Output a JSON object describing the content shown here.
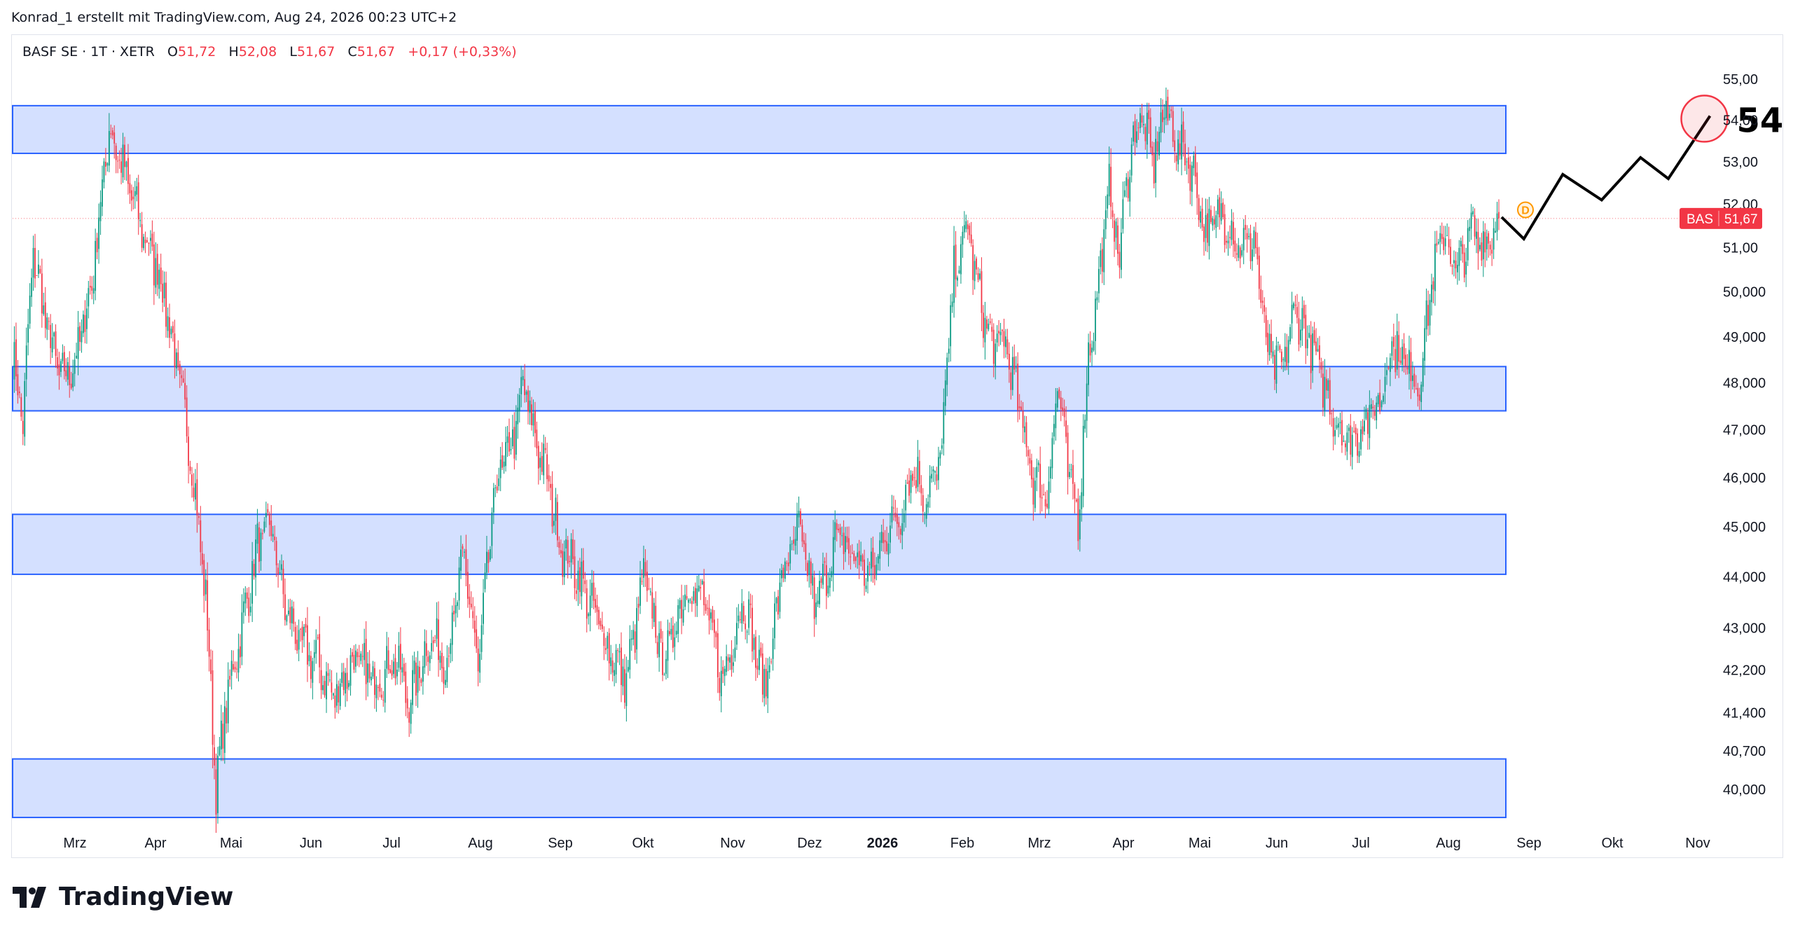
{
  "header": {
    "credit": "Konrad_1 erstellt mit TradingView.com, Aug 24, 2026 00:23 UTC+2"
  },
  "legend": {
    "symbol": "BASF SE · 1T · XETR",
    "open_label": "O",
    "open": "51,72",
    "high_label": "H",
    "high": "52,08",
    "low_label": "L",
    "low": "51,67",
    "close_label": "C",
    "close": "51,67",
    "change": "+0,17 (+0,33%)"
  },
  "brand": {
    "name": "TradingView"
  },
  "chart_data": {
    "type": "candlestick",
    "symbol": "BAS",
    "last_price": 51.67,
    "last_price_label": "51,67",
    "y_scale": "log",
    "ylim": [
      39.3,
      55.4
    ],
    "price_ticks": [
      {
        "v": 55,
        "label": "55,00"
      },
      {
        "v": 54,
        "label": "54,00"
      },
      {
        "v": 53,
        "label": "53,00"
      },
      {
        "v": 52,
        "label": "52,00"
      },
      {
        "v": 51,
        "label": "51,00"
      },
      {
        "v": 50,
        "label": "50,000"
      },
      {
        "v": 49,
        "label": "49,000"
      },
      {
        "v": 48,
        "label": "48,000"
      },
      {
        "v": 47,
        "label": "47,000"
      },
      {
        "v": 46,
        "label": "46,000"
      },
      {
        "v": 45,
        "label": "45,000"
      },
      {
        "v": 44,
        "label": "44,000"
      },
      {
        "v": 43,
        "label": "43,000"
      },
      {
        "v": 42.2,
        "label": "42,200"
      },
      {
        "v": 41.4,
        "label": "41,400"
      },
      {
        "v": 40.7,
        "label": "40,700"
      },
      {
        "v": 40,
        "label": "40,000"
      }
    ],
    "x_ticks": [
      "Mrz",
      "Apr",
      "Mai",
      "Jun",
      "Jul",
      "Aug",
      "Sep",
      "Okt",
      "Nov",
      "Dez",
      "2026",
      "Feb",
      "Mrz",
      "Apr",
      "Mai",
      "Jun",
      "Jul",
      "Aug",
      "Sep",
      "Okt",
      "Nov"
    ],
    "bold_tick": "2026",
    "path_anchors": [
      {
        "x": 0,
        "p": 48.6
      },
      {
        "x": 6,
        "p": 47.2
      },
      {
        "x": 12,
        "p": 50.9
      },
      {
        "x": 20,
        "p": 49.2
      },
      {
        "x": 28,
        "p": 48.1
      },
      {
        "x": 36,
        "p": 48.4
      },
      {
        "x": 46,
        "p": 50.2
      },
      {
        "x": 56,
        "p": 53.8
      },
      {
        "x": 66,
        "p": 52.6
      },
      {
        "x": 76,
        "p": 51.3
      },
      {
        "x": 86,
        "p": 50.3
      },
      {
        "x": 96,
        "p": 48.2
      },
      {
        "x": 104,
        "p": 46.3
      },
      {
        "x": 112,
        "p": 43.6
      },
      {
        "x": 118,
        "p": 40.0
      },
      {
        "x": 124,
        "p": 41.6
      },
      {
        "x": 134,
        "p": 43.2
      },
      {
        "x": 142,
        "p": 44.6
      },
      {
        "x": 150,
        "p": 45.0
      },
      {
        "x": 158,
        "p": 43.4
      },
      {
        "x": 168,
        "p": 42.6
      },
      {
        "x": 176,
        "p": 42.4
      },
      {
        "x": 186,
        "p": 41.7
      },
      {
        "x": 198,
        "p": 42.4
      },
      {
        "x": 210,
        "p": 42.0
      },
      {
        "x": 222,
        "p": 42.4
      },
      {
        "x": 230,
        "p": 41.6
      },
      {
        "x": 242,
        "p": 42.8
      },
      {
        "x": 252,
        "p": 42.4
      },
      {
        "x": 262,
        "p": 44.4
      },
      {
        "x": 270,
        "p": 42.2
      },
      {
        "x": 280,
        "p": 45.8
      },
      {
        "x": 292,
        "p": 47.0
      },
      {
        "x": 296,
        "p": 48.0
      },
      {
        "x": 302,
        "p": 47.0
      },
      {
        "x": 310,
        "p": 46.0
      },
      {
        "x": 318,
        "p": 44.6
      },
      {
        "x": 326,
        "p": 44.2
      },
      {
        "x": 336,
        "p": 43.4
      },
      {
        "x": 346,
        "p": 42.6
      },
      {
        "x": 356,
        "p": 42.0
      },
      {
        "x": 366,
        "p": 44.0
      },
      {
        "x": 378,
        "p": 42.3
      },
      {
        "x": 390,
        "p": 43.8
      },
      {
        "x": 400,
        "p": 43.6
      },
      {
        "x": 412,
        "p": 42.0
      },
      {
        "x": 424,
        "p": 43.6
      },
      {
        "x": 436,
        "p": 41.8
      },
      {
        "x": 446,
        "p": 44.0
      },
      {
        "x": 456,
        "p": 44.9
      },
      {
        "x": 466,
        "p": 43.4
      },
      {
        "x": 478,
        "p": 44.8
      },
      {
        "x": 488,
        "p": 44.4
      },
      {
        "x": 498,
        "p": 44.0
      },
      {
        "x": 506,
        "p": 44.9
      },
      {
        "x": 514,
        "p": 45.2
      },
      {
        "x": 522,
        "p": 46.2
      },
      {
        "x": 530,
        "p": 45.6
      },
      {
        "x": 538,
        "p": 46.3
      },
      {
        "x": 546,
        "p": 50.4
      },
      {
        "x": 554,
        "p": 51.5
      },
      {
        "x": 560,
        "p": 50.0
      },
      {
        "x": 568,
        "p": 48.8
      },
      {
        "x": 576,
        "p": 48.9
      },
      {
        "x": 584,
        "p": 47.4
      },
      {
        "x": 592,
        "p": 46.0
      },
      {
        "x": 600,
        "p": 45.6
      },
      {
        "x": 606,
        "p": 48.0
      },
      {
        "x": 612,
        "p": 46.2
      },
      {
        "x": 618,
        "p": 45.1
      },
      {
        "x": 624,
        "p": 48.6
      },
      {
        "x": 630,
        "p": 50.2
      },
      {
        "x": 636,
        "p": 52.4
      },
      {
        "x": 642,
        "p": 50.8
      },
      {
        "x": 648,
        "p": 53.2
      },
      {
        "x": 654,
        "p": 54.1
      },
      {
        "x": 662,
        "p": 53.0
      },
      {
        "x": 668,
        "p": 54.3
      },
      {
        "x": 676,
        "p": 53.4
      },
      {
        "x": 684,
        "p": 52.9
      },
      {
        "x": 692,
        "p": 51.3
      },
      {
        "x": 702,
        "p": 51.8
      },
      {
        "x": 712,
        "p": 51.0
      },
      {
        "x": 720,
        "p": 51.2
      },
      {
        "x": 728,
        "p": 48.6
      },
      {
        "x": 736,
        "p": 48.3
      },
      {
        "x": 744,
        "p": 49.6
      },
      {
        "x": 752,
        "p": 48.9
      },
      {
        "x": 760,
        "p": 48.0
      },
      {
        "x": 768,
        "p": 47.2
      },
      {
        "x": 776,
        "p": 46.7
      },
      {
        "x": 784,
        "p": 47.2
      },
      {
        "x": 792,
        "p": 47.5
      },
      {
        "x": 800,
        "p": 48.9
      },
      {
        "x": 808,
        "p": 48.4
      },
      {
        "x": 816,
        "p": 48.0
      },
      {
        "x": 822,
        "p": 50.0
      },
      {
        "x": 830,
        "p": 51.4
      },
      {
        "x": 838,
        "p": 50.4
      },
      {
        "x": 846,
        "p": 51.4
      },
      {
        "x": 852,
        "p": 51.1
      },
      {
        "x": 858,
        "p": 51.3
      },
      {
        "x": 862,
        "p": 51.67
      }
    ],
    "zones": [
      {
        "from": 53.2,
        "to": 54.35
      },
      {
        "from": 47.4,
        "to": 48.35
      },
      {
        "from": 44.05,
        "to": 45.25
      },
      {
        "from": 39.5,
        "to": 40.55
      }
    ],
    "projection": [
      {
        "d": 0,
        "p": 51.7
      },
      {
        "d": 8,
        "p": 51.2
      },
      {
        "d": 22,
        "p": 52.7
      },
      {
        "d": 36,
        "p": 52.1
      },
      {
        "d": 50,
        "p": 53.1
      },
      {
        "d": 60,
        "p": 52.6
      },
      {
        "d": 75,
        "p": 54.1
      }
    ],
    "target": {
      "value": 54,
      "label": "54"
    },
    "event_marker": {
      "label": "D"
    }
  }
}
